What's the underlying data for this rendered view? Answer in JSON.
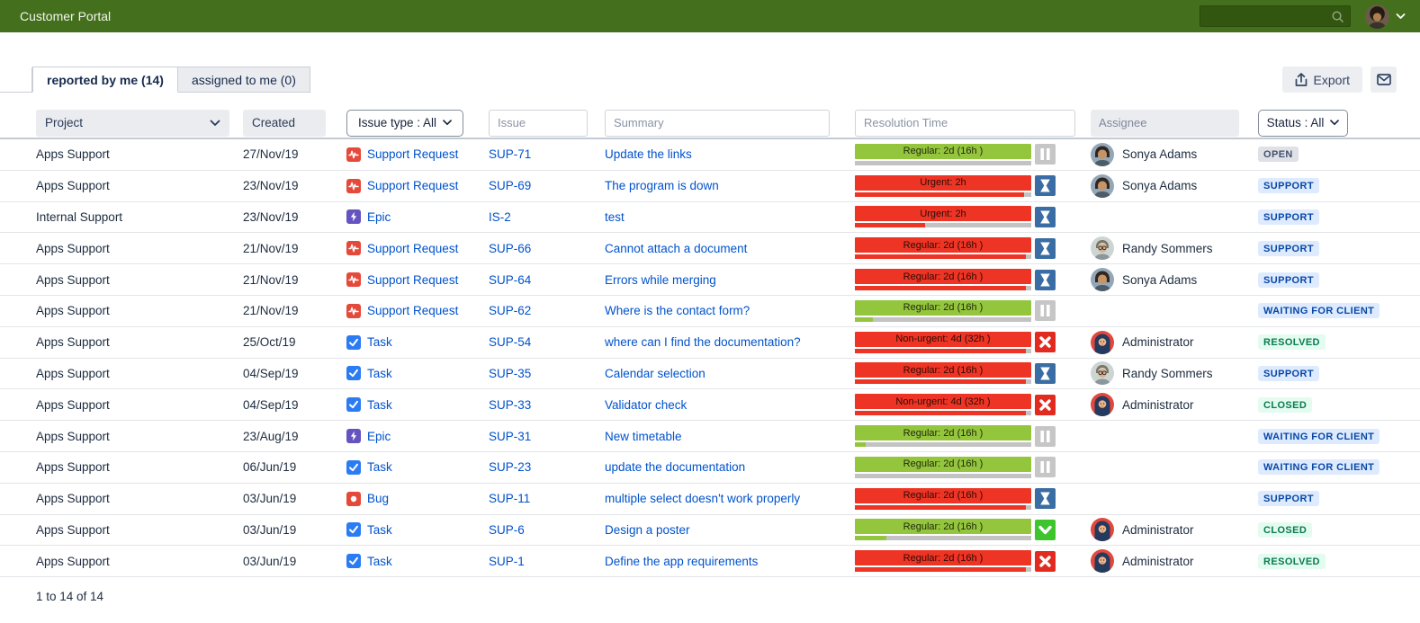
{
  "topbar": {
    "title": "Customer Portal",
    "search_placeholder": ""
  },
  "tabs": {
    "items": [
      {
        "label": "reported by me (14)",
        "active": true
      },
      {
        "label": "assigned to me (0)",
        "active": false
      }
    ]
  },
  "toolbar": {
    "export_label": "Export"
  },
  "filters": {
    "project_label": "Project",
    "created_label": "Created",
    "issue_type_label": "Issue type : All",
    "issue_placeholder": "Issue",
    "summary_placeholder": "Summary",
    "resolution_time_placeholder": "Resolution Time",
    "assignee_placeholder": "Assignee",
    "status_label": "Status : All"
  },
  "colors": {
    "navbar_green": "#44701d",
    "link_blue": "#0052cc",
    "sla_green": "#94c63d",
    "sla_red": "#ee3424",
    "status_gray_bg": "#dfe1e6",
    "status_blue_bg": "#deebff",
    "status_green_bg": "#e3fcef"
  },
  "table": {
    "rows": [
      {
        "project": "Apps Support",
        "created": "27/Nov/19",
        "type": "Support Request",
        "type_icon": "support-request",
        "key": "SUP-71",
        "summary": "Update the links",
        "sla_label": "Regular: 2d (16h )",
        "sla_color": "green",
        "sla_icon": "pause",
        "progress_pct": 0,
        "progress_color": "gray",
        "assignee": "Sonya Adams",
        "avatar": "sonya",
        "status": "OPEN",
        "status_style": "gray"
      },
      {
        "project": "Apps Support",
        "created": "23/Nov/19",
        "type": "Support Request",
        "type_icon": "support-request",
        "key": "SUP-69",
        "summary": "The program is down",
        "sla_label": "Urgent: 2h",
        "sla_color": "red",
        "sla_icon": "hourglass",
        "progress_pct": 96,
        "progress_color": "red",
        "assignee": "Sonya Adams",
        "avatar": "sonya",
        "status": "SUPPORT",
        "status_style": "blue"
      },
      {
        "project": "Internal Support",
        "created": "23/Nov/19",
        "type": "Epic",
        "type_icon": "epic",
        "key": "IS-2",
        "summary": "test",
        "sla_label": "Urgent: 2h",
        "sla_color": "red",
        "sla_icon": "hourglass",
        "progress_pct": 40,
        "progress_color": "red",
        "assignee": null,
        "avatar": null,
        "status": "SUPPORT",
        "status_style": "blue"
      },
      {
        "project": "Apps Support",
        "created": "21/Nov/19",
        "type": "Support Request",
        "type_icon": "support-request",
        "key": "SUP-66",
        "summary": "Cannot attach a document",
        "sla_label": "Regular: 2d (16h )",
        "sla_color": "red",
        "sla_icon": "hourglass",
        "progress_pct": 97,
        "progress_color": "red",
        "assignee": "Randy Sommers",
        "avatar": "randy",
        "status": "SUPPORT",
        "status_style": "blue"
      },
      {
        "project": "Apps Support",
        "created": "21/Nov/19",
        "type": "Support Request",
        "type_icon": "support-request",
        "key": "SUP-64",
        "summary": "Errors while merging",
        "sla_label": "Regular: 2d (16h )",
        "sla_color": "red",
        "sla_icon": "hourglass",
        "progress_pct": 97,
        "progress_color": "red",
        "assignee": "Sonya Adams",
        "avatar": "sonya",
        "status": "SUPPORT",
        "status_style": "blue"
      },
      {
        "project": "Apps Support",
        "created": "21/Nov/19",
        "type": "Support Request",
        "type_icon": "support-request",
        "key": "SUP-62",
        "summary": "Where is the contact form?",
        "sla_label": "Regular: 2d (16h )",
        "sla_color": "green",
        "sla_icon": "pause",
        "progress_pct": 10,
        "progress_color": "green",
        "assignee": null,
        "avatar": null,
        "status": "WAITING FOR CLIENT",
        "status_style": "blue"
      },
      {
        "project": "Apps Support",
        "created": "25/Oct/19",
        "type": "Task",
        "type_icon": "task",
        "key": "SUP-54",
        "summary": "where can I find the documentation?",
        "sla_label": "Non-urgent: 4d (32h )",
        "sla_color": "red",
        "sla_icon": "x",
        "progress_pct": 97,
        "progress_color": "red",
        "assignee": "Administrator",
        "avatar": "admin",
        "status": "RESOLVED",
        "status_style": "green"
      },
      {
        "project": "Apps Support",
        "created": "04/Sep/19",
        "type": "Task",
        "type_icon": "task",
        "key": "SUP-35",
        "summary": "Calendar selection",
        "sla_label": "Regular: 2d (16h )",
        "sla_color": "red",
        "sla_icon": "hourglass",
        "progress_pct": 97,
        "progress_color": "red",
        "assignee": "Randy Sommers",
        "avatar": "randy",
        "status": "SUPPORT",
        "status_style": "blue"
      },
      {
        "project": "Apps Support",
        "created": "04/Sep/19",
        "type": "Task",
        "type_icon": "task",
        "key": "SUP-33",
        "summary": "Validator check",
        "sla_label": "Non-urgent: 4d (32h )",
        "sla_color": "red",
        "sla_icon": "x",
        "progress_pct": 97,
        "progress_color": "red",
        "assignee": "Administrator",
        "avatar": "admin",
        "status": "CLOSED",
        "status_style": "green"
      },
      {
        "project": "Apps Support",
        "created": "23/Aug/19",
        "type": "Epic",
        "type_icon": "epic",
        "key": "SUP-31",
        "summary": "New timetable",
        "sla_label": "Regular: 2d (16h )",
        "sla_color": "green",
        "sla_icon": "pause",
        "progress_pct": 6,
        "progress_color": "green",
        "assignee": null,
        "avatar": null,
        "status": "WAITING FOR CLIENT",
        "status_style": "blue"
      },
      {
        "project": "Apps Support",
        "created": "06/Jun/19",
        "type": "Task",
        "type_icon": "task",
        "key": "SUP-23",
        "summary": "update the documentation",
        "sla_label": "Regular: 2d (16h )",
        "sla_color": "green",
        "sla_icon": "pause",
        "progress_pct": 0,
        "progress_color": "gray",
        "assignee": null,
        "avatar": null,
        "status": "WAITING FOR CLIENT",
        "status_style": "blue"
      },
      {
        "project": "Apps Support",
        "created": "03/Jun/19",
        "type": "Bug",
        "type_icon": "bug",
        "key": "SUP-11",
        "summary": "multiple select doesn't work properly",
        "sla_label": "Regular: 2d (16h )",
        "sla_color": "red",
        "sla_icon": "hourglass",
        "progress_pct": 97,
        "progress_color": "red",
        "assignee": null,
        "avatar": null,
        "status": "SUPPORT",
        "status_style": "blue"
      },
      {
        "project": "Apps Support",
        "created": "03/Jun/19",
        "type": "Task",
        "type_icon": "task",
        "key": "SUP-6",
        "summary": "Design a poster",
        "sla_label": "Regular: 2d (16h )",
        "sla_color": "green",
        "sla_icon": "check",
        "progress_pct": 18,
        "progress_color": "green",
        "assignee": "Administrator",
        "avatar": "admin",
        "status": "CLOSED",
        "status_style": "green"
      },
      {
        "project": "Apps Support",
        "created": "03/Jun/19",
        "type": "Task",
        "type_icon": "task",
        "key": "SUP-1",
        "summary": "Define the app requirements",
        "sla_label": "Regular: 2d (16h )",
        "sla_color": "red",
        "sla_icon": "x",
        "progress_pct": 97,
        "progress_color": "red",
        "assignee": "Administrator",
        "avatar": "admin",
        "status": "RESOLVED",
        "status_style": "green"
      }
    ]
  },
  "footer": {
    "pagination": "1 to 14 of 14"
  }
}
